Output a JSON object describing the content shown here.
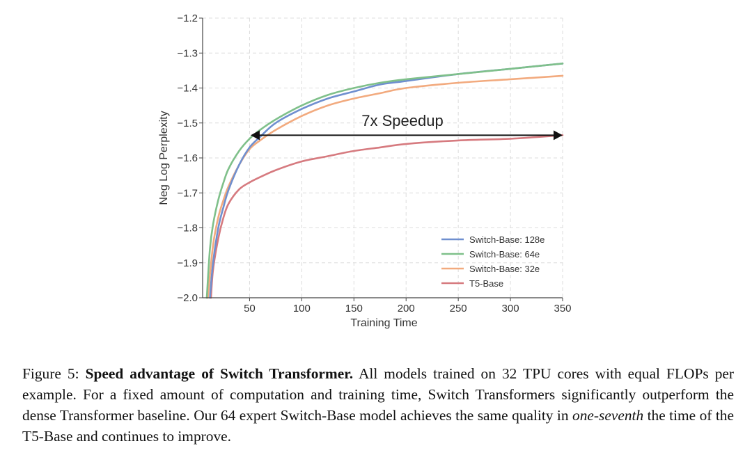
{
  "chart_data": {
    "type": "line",
    "xlabel": "Training Time",
    "ylabel": "Neg Log Perplexity",
    "xlim": [
      5,
      350
    ],
    "ylim": [
      -2.0,
      -1.2
    ],
    "xticks": [
      50,
      100,
      150,
      200,
      250,
      300,
      350
    ],
    "yticks": [
      -2.0,
      -1.9,
      -1.8,
      -1.7,
      -1.6,
      -1.5,
      -1.4,
      -1.3,
      -1.2
    ],
    "xtick_labels": [
      "50",
      "100",
      "150",
      "200",
      "250",
      "300",
      "350"
    ],
    "ytick_labels": [
      "−2.0",
      "−1.9",
      "−1.8",
      "−1.7",
      "−1.6",
      "−1.5",
      "−1.4",
      "−1.3",
      "−1.2"
    ],
    "grid": true,
    "legend_position": "lower-right",
    "series": [
      {
        "name": "Switch-Base: 128e",
        "color": "#6f8fcf",
        "x": [
          12,
          15,
          20,
          25,
          30,
          40,
          50,
          60,
          75,
          100,
          125,
          150,
          175,
          200,
          250,
          300,
          350
        ],
        "y": [
          -2.0,
          -1.9,
          -1.8,
          -1.74,
          -1.69,
          -1.62,
          -1.57,
          -1.54,
          -1.5,
          -1.46,
          -1.43,
          -1.41,
          -1.39,
          -1.38,
          -1.36,
          -1.345,
          -1.33
        ]
      },
      {
        "name": "Switch-Base: 64e",
        "color": "#7fc08a",
        "x": [
          9,
          12,
          15,
          20,
          25,
          30,
          40,
          50,
          60,
          75,
          100,
          125,
          150,
          175,
          200,
          250,
          300,
          350
        ],
        "y": [
          -2.0,
          -1.86,
          -1.79,
          -1.72,
          -1.67,
          -1.63,
          -1.58,
          -1.545,
          -1.52,
          -1.49,
          -1.45,
          -1.42,
          -1.4,
          -1.385,
          -1.375,
          -1.36,
          -1.345,
          -1.33
        ]
      },
      {
        "name": "Switch-Base: 32e",
        "color": "#f2aa7e",
        "x": [
          10,
          15,
          20,
          25,
          30,
          40,
          50,
          60,
          75,
          100,
          125,
          150,
          175,
          200,
          250,
          300,
          350
        ],
        "y": [
          -2.0,
          -1.85,
          -1.77,
          -1.72,
          -1.68,
          -1.62,
          -1.575,
          -1.55,
          -1.52,
          -1.48,
          -1.45,
          -1.43,
          -1.415,
          -1.4,
          -1.385,
          -1.375,
          -1.365
        ]
      },
      {
        "name": "T5-Base",
        "color": "#d67a7f",
        "x": [
          13,
          15,
          20,
          25,
          30,
          40,
          50,
          60,
          75,
          100,
          125,
          150,
          175,
          200,
          250,
          300,
          350
        ],
        "y": [
          -2.0,
          -1.92,
          -1.83,
          -1.77,
          -1.73,
          -1.69,
          -1.67,
          -1.655,
          -1.635,
          -1.61,
          -1.595,
          -1.58,
          -1.57,
          -1.56,
          -1.55,
          -1.545,
          -1.535
        ]
      }
    ],
    "annotations": [
      {
        "text": "7x Speedup",
        "arrow_from": [
          51,
          -1.535
        ],
        "arrow_to": [
          350,
          -1.535
        ],
        "double_headed": true
      }
    ]
  },
  "caption": {
    "prefix": "Figure 5: ",
    "bold": "Speed advantage of Switch Transformer.",
    "part1": " All models trained on 32 TPU cores with equal FLOPs per example. For a fixed amount of computation and training time, Switch Transformers significantly outperform the dense Transformer baseline. Our 64 expert Switch-Base model achieves the same quality in ",
    "italic": "one-seventh",
    "part2": " the time of the T5-Base and continues to improve."
  }
}
